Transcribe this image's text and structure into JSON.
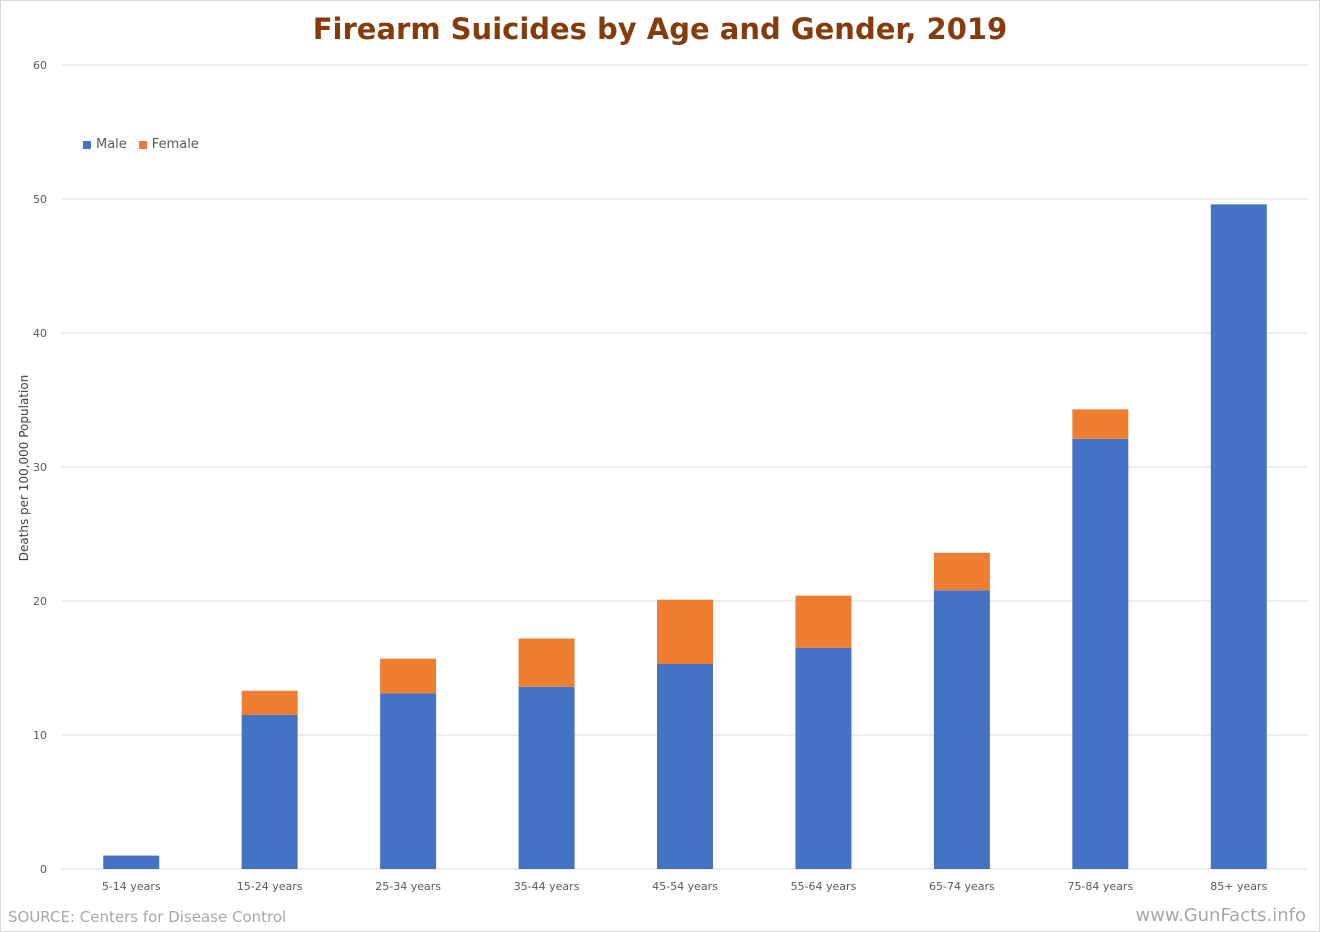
{
  "chart_data": {
    "type": "bar",
    "stacked": true,
    "title": "Firearm Suicides by Age and Gender, 2019",
    "xlabel": "",
    "ylabel": "Deaths per 100,000 Population",
    "ylim": [
      0,
      60
    ],
    "yticks": [
      0,
      10,
      20,
      30,
      40,
      50,
      60
    ],
    "grid": true,
    "legend_position": "top-left",
    "categories": [
      "5-14 years",
      "15-24 years",
      "25-34 years",
      "35-44 years",
      "45-54 years",
      "55-64 years",
      "65-74 years",
      "75-84 years",
      "85+ years"
    ],
    "series": [
      {
        "name": "Male",
        "color": "#4472c4",
        "values": [
          1.0,
          11.5,
          13.1,
          13.6,
          15.3,
          16.5,
          20.8,
          32.1,
          49.6
        ]
      },
      {
        "name": "Female",
        "color": "#ed7d31",
        "values": [
          0,
          1.8,
          2.6,
          3.6,
          4.8,
          3.9,
          2.8,
          2.2,
          0
        ]
      }
    ]
  },
  "footer": {
    "source": "SOURCE:  Centers for Disease Control",
    "brand": "www.GunFacts.info"
  }
}
